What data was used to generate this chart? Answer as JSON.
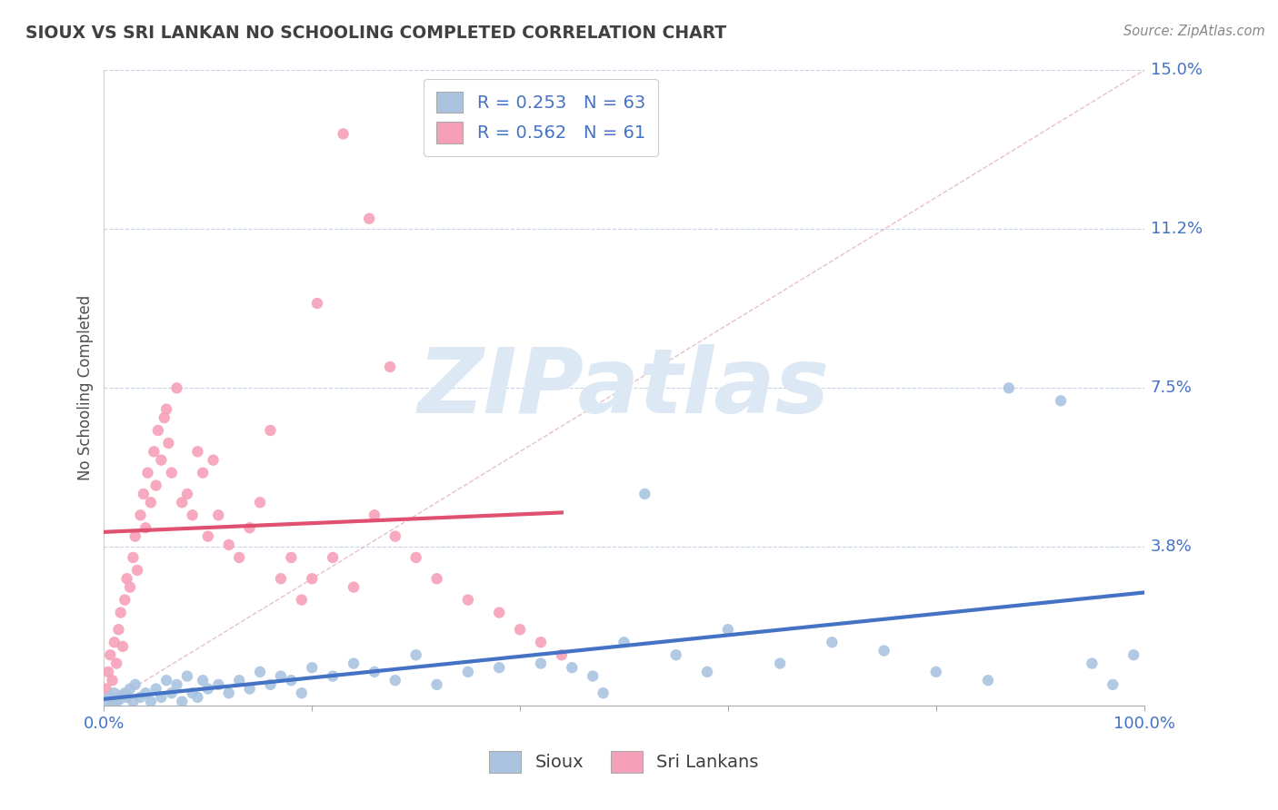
{
  "title": "SIOUX VS SRI LANKAN NO SCHOOLING COMPLETED CORRELATION CHART",
  "source": "Source: ZipAtlas.com",
  "ylabel": "No Schooling Completed",
  "xlim": [
    0.0,
    100.0
  ],
  "ylim": [
    0.0,
    15.0
  ],
  "yticks": [
    0.0,
    3.75,
    7.5,
    11.25,
    15.0
  ],
  "ytick_labels": [
    "",
    "3.8%",
    "7.5%",
    "11.2%",
    "15.0%"
  ],
  "xticks": [
    0.0,
    100.0
  ],
  "xtick_labels": [
    "0.0%",
    "100.0%"
  ],
  "sioux_R": 0.253,
  "sioux_N": 63,
  "srilanka_R": 0.562,
  "srilanka_N": 61,
  "sioux_color": "#aac4e0",
  "srilanka_color": "#f5a0b8",
  "sioux_line_color": "#4472c4",
  "srilanka_line_color": "#e05070",
  "ref_line_color": "#c8c8d8",
  "grid_color": "#c8d4e8",
  "background_color": "#ffffff",
  "title_color": "#404040",
  "axis_label_color": "#4472c4",
  "watermark_color": "#dce8f4",
  "sioux_x": [
    0.3,
    0.5,
    0.8,
    1.0,
    1.2,
    1.5,
    1.8,
    2.0,
    2.2,
    2.5,
    2.8,
    3.0,
    3.5,
    4.0,
    4.5,
    5.0,
    5.5,
    6.0,
    6.5,
    7.0,
    7.5,
    8.0,
    8.5,
    9.0,
    9.5,
    10.0,
    11.0,
    12.0,
    13.0,
    14.0,
    15.0,
    16.0,
    17.0,
    18.0,
    19.0,
    20.0,
    22.0,
    24.0,
    26.0,
    28.0,
    30.0,
    32.0,
    35.0,
    38.0,
    42.0,
    47.0,
    50.0,
    55.0,
    60.0,
    65.0,
    70.0,
    75.0,
    80.0,
    85.0,
    87.0,
    92.0,
    95.0,
    97.0,
    99.0,
    45.0,
    48.0,
    52.0,
    58.0
  ],
  "sioux_y": [
    0.1,
    0.2,
    0.05,
    0.3,
    0.1,
    0.15,
    0.25,
    0.3,
    0.2,
    0.4,
    0.1,
    0.5,
    0.2,
    0.3,
    0.1,
    0.4,
    0.2,
    0.6,
    0.3,
    0.5,
    0.1,
    0.7,
    0.3,
    0.2,
    0.6,
    0.4,
    0.5,
    0.3,
    0.6,
    0.4,
    0.8,
    0.5,
    0.7,
    0.6,
    0.3,
    0.9,
    0.7,
    1.0,
    0.8,
    0.6,
    1.2,
    0.5,
    0.8,
    0.9,
    1.0,
    0.7,
    1.5,
    1.2,
    1.8,
    1.0,
    1.5,
    1.3,
    0.8,
    0.6,
    7.5,
    7.2,
    1.0,
    0.5,
    1.2,
    0.9,
    0.3,
    5.0,
    0.8
  ],
  "srilanka_x": [
    0.2,
    0.4,
    0.6,
    0.8,
    1.0,
    1.2,
    1.4,
    1.6,
    1.8,
    2.0,
    2.2,
    2.5,
    2.8,
    3.0,
    3.2,
    3.5,
    3.8,
    4.0,
    4.2,
    4.5,
    4.8,
    5.0,
    5.2,
    5.5,
    5.8,
    6.0,
    6.2,
    6.5,
    7.0,
    7.5,
    8.0,
    8.5,
    9.0,
    9.5,
    10.0,
    11.0,
    12.0,
    13.0,
    14.0,
    15.0,
    17.0,
    18.0,
    19.0,
    20.0,
    22.0,
    24.0,
    26.0,
    28.0,
    30.0,
    32.0,
    35.0,
    38.0,
    40.0,
    42.0,
    44.0,
    23.0,
    25.5,
    27.5,
    20.5,
    16.0,
    10.5
  ],
  "srilanka_y": [
    0.4,
    0.8,
    1.2,
    0.6,
    1.5,
    1.0,
    1.8,
    2.2,
    1.4,
    2.5,
    3.0,
    2.8,
    3.5,
    4.0,
    3.2,
    4.5,
    5.0,
    4.2,
    5.5,
    4.8,
    6.0,
    5.2,
    6.5,
    5.8,
    6.8,
    7.0,
    6.2,
    5.5,
    7.5,
    4.8,
    5.0,
    4.5,
    6.0,
    5.5,
    4.0,
    4.5,
    3.8,
    3.5,
    4.2,
    4.8,
    3.0,
    3.5,
    2.5,
    3.0,
    3.5,
    2.8,
    4.5,
    4.0,
    3.5,
    3.0,
    2.5,
    2.2,
    1.8,
    1.5,
    1.2,
    13.5,
    11.5,
    8.0,
    9.5,
    6.5,
    5.8
  ],
  "srilanka_line_xstart": 0.0,
  "srilanka_line_xend": 44.0,
  "sioux_line_xstart": 0.0,
  "sioux_line_xend": 100.0
}
